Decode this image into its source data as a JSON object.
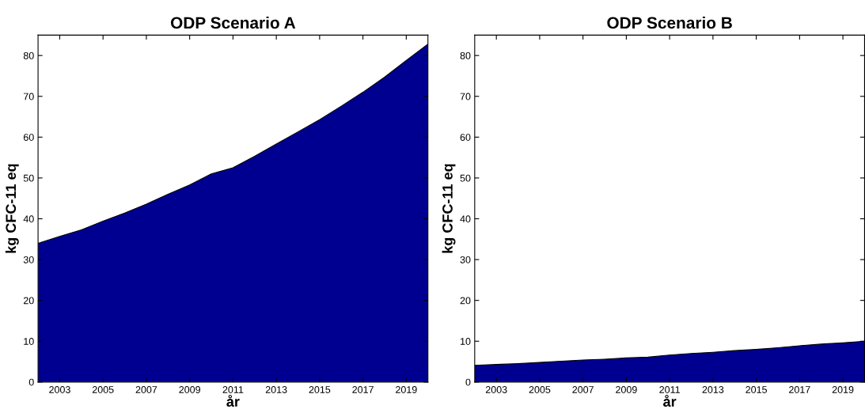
{
  "chart_data": [
    {
      "type": "area",
      "title": "ODP Scenario A",
      "xlabel": "år",
      "ylabel": "kg CFC-11 eq",
      "x": [
        2002,
        2003,
        2004,
        2005,
        2006,
        2007,
        2008,
        2009,
        2010,
        2011,
        2012,
        2013,
        2014,
        2015,
        2016,
        2017,
        2018,
        2019,
        2020
      ],
      "series": [
        {
          "color": "#000090",
          "values": [
            34,
            35.7,
            37.3,
            39.4,
            41.4,
            43.6,
            46,
            48.3,
            51,
            52.5,
            55.3,
            58.3,
            61.3,
            64.3,
            67.6,
            71,
            74.7,
            78.8,
            82.8
          ]
        }
      ],
      "xlim": [
        2002,
        2020
      ],
      "xticks": [
        2003,
        2005,
        2007,
        2009,
        2011,
        2013,
        2015,
        2017,
        2019
      ],
      "ylim": [
        0,
        85
      ],
      "yticks": [
        0,
        10,
        20,
        30,
        40,
        50,
        60,
        70,
        80
      ]
    },
    {
      "type": "area",
      "title": "ODP Scenario B",
      "xlabel": "år",
      "ylabel": "kg CFC-11 eq",
      "x": [
        2002,
        2003,
        2004,
        2005,
        2006,
        2007,
        2008,
        2009,
        2010,
        2011,
        2012,
        2013,
        2014,
        2015,
        2016,
        2017,
        2018,
        2019,
        2020
      ],
      "series": [
        {
          "color": "#000090",
          "values": [
            4.1,
            4.3,
            4.5,
            4.8,
            5.1,
            5.4,
            5.6,
            5.9,
            6.1,
            6.6,
            7.0,
            7.3,
            7.7,
            8.0,
            8.4,
            8.9,
            9.3,
            9.6,
            10.0
          ]
        }
      ],
      "xlim": [
        2002,
        2020
      ],
      "xticks": [
        2003,
        2005,
        2007,
        2009,
        2011,
        2013,
        2015,
        2017,
        2019
      ],
      "ylim": [
        0,
        85
      ],
      "yticks": [
        0,
        10,
        20,
        30,
        40,
        50,
        60,
        70,
        80
      ]
    }
  ]
}
